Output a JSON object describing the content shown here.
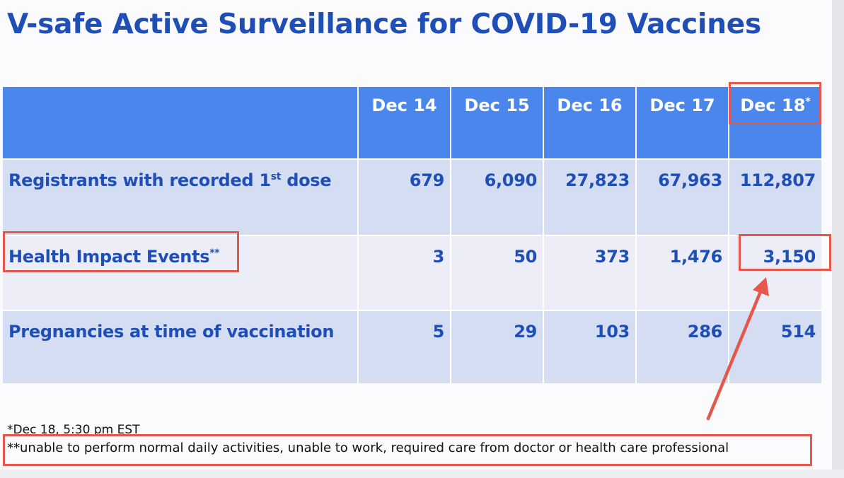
{
  "title": "V-safe Active Surveillance for COVID-19 Vaccines",
  "table": {
    "columns": [
      {
        "label": "Dec 14",
        "sup": ""
      },
      {
        "label": "Dec 15",
        "sup": ""
      },
      {
        "label": "Dec 16",
        "sup": ""
      },
      {
        "label": "Dec 17",
        "sup": ""
      },
      {
        "label": "Dec 18",
        "sup": "*"
      }
    ],
    "rows": [
      {
        "label_main": "Registrants with recorded 1",
        "label_sup": "st",
        "label_tail": " dose",
        "values": [
          "679",
          "6,090",
          "27,823",
          "67,963",
          "112,807"
        ]
      },
      {
        "label_main": "Health Impact Events",
        "label_sup": "**",
        "label_tail": "",
        "values": [
          "3",
          "50",
          "373",
          "1,476",
          "3,150"
        ]
      },
      {
        "label_main": "Pregnancies at time of vaccination",
        "label_sup": "",
        "label_tail": "",
        "values": [
          "5",
          "29",
          "103",
          "286",
          "514"
        ]
      }
    ]
  },
  "footnotes": {
    "dec18": "*Dec 18, 5:30 pm EST",
    "health_impact": "**unable to perform normal daily activities, unable to work, required care from doctor or health care professional"
  },
  "colors": {
    "title": "#1f4fb6",
    "header_bg": "#4a86eb",
    "row_dark": "#d5ddf3",
    "row_light": "#ecedf7",
    "highlight": "#e4574a"
  }
}
